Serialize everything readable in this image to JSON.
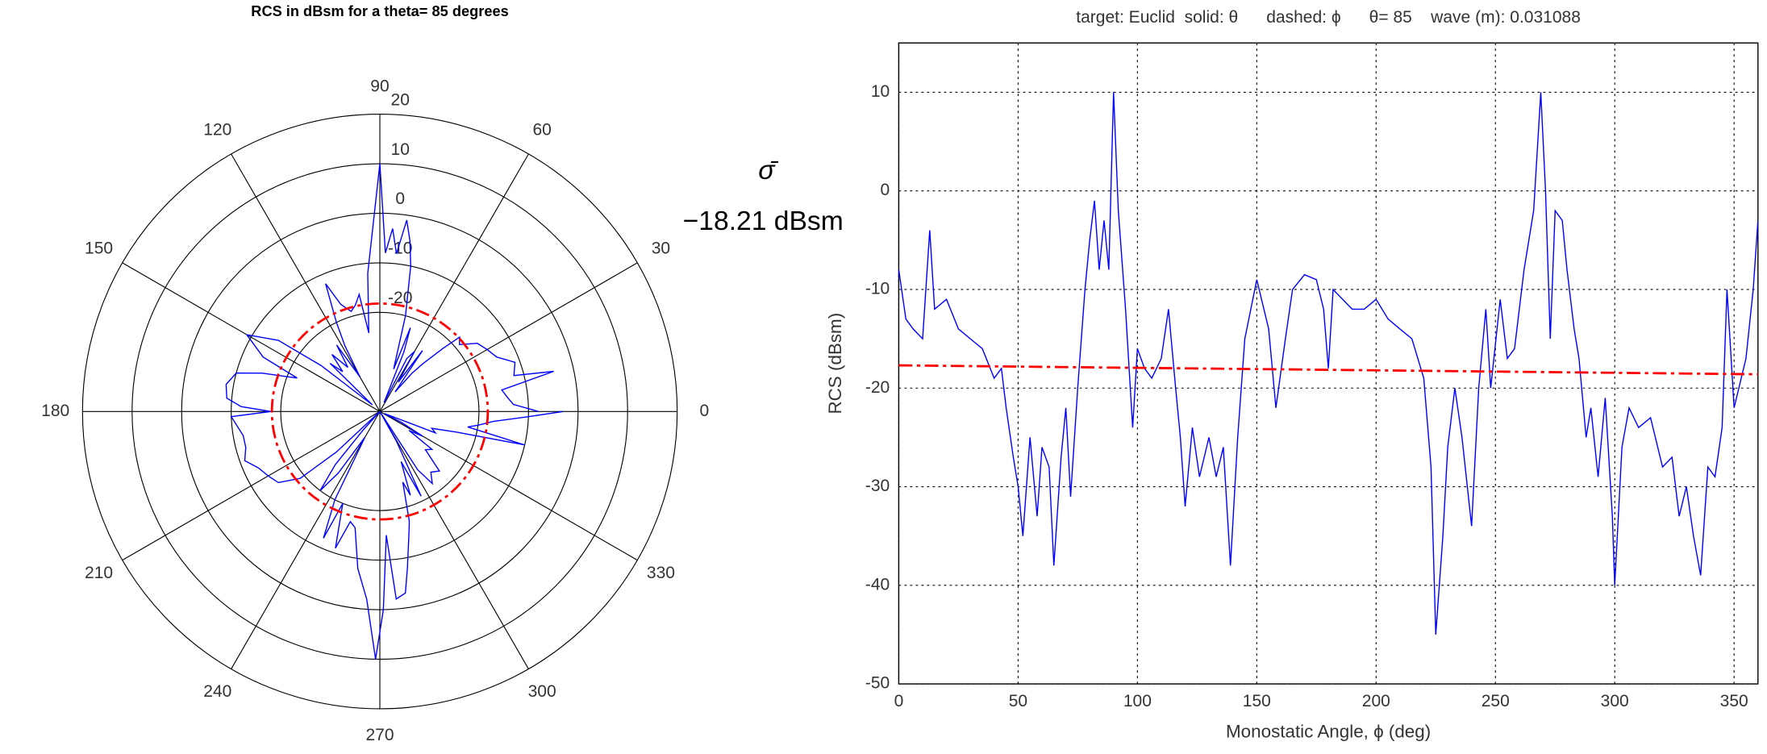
{
  "chart_data": [
    {
      "type": "polar",
      "title": "RCS in dBsm for a theta= 85 degrees",
      "theta": [
        0,
        3,
        6,
        10,
        13,
        15,
        20,
        25,
        30,
        35,
        40,
        43,
        45,
        48,
        50,
        52,
        55,
        58,
        60,
        63,
        65,
        68,
        70,
        72,
        75,
        78,
        80,
        82,
        84,
        86,
        88,
        90,
        92,
        95,
        98,
        100,
        103,
        106,
        110,
        113,
        116,
        118,
        120,
        123,
        126,
        130,
        133,
        136,
        139,
        142,
        145,
        150,
        155,
        158,
        162,
        165,
        170,
        175,
        178,
        180,
        182,
        190,
        195,
        200,
        205,
        210,
        215,
        220,
        223,
        225,
        228,
        230,
        233,
        236,
        240,
        243,
        246,
        248,
        252,
        255,
        258,
        262,
        266,
        269,
        271,
        273,
        275,
        278,
        280,
        283,
        285,
        288,
        290,
        293,
        296,
        299,
        300,
        303,
        306,
        310,
        315,
        320,
        324,
        327,
        330,
        333,
        336,
        339,
        342,
        345,
        347,
        350,
        352,
        355,
        358,
        360
      ],
      "values": [
        -8,
        -13,
        -14,
        -15,
        -4,
        -12,
        -11,
        -14,
        -15,
        -16,
        -19,
        -18,
        -22,
        -27,
        -30,
        -35,
        -25,
        -33,
        -26,
        -28,
        -38,
        -27,
        -22,
        -31,
        -20,
        -10,
        -5,
        -1,
        -8,
        -3,
        -8,
        10,
        -2,
        -12,
        -24,
        -16,
        -18,
        -19,
        -17,
        -12,
        -20,
        -25,
        -32,
        -24,
        -29,
        -25,
        -29,
        -26,
        -38,
        -25,
        -15,
        -9,
        -14,
        -22,
        -15,
        -10,
        -8.5,
        -9,
        -12,
        -18,
        -10,
        -12,
        -12,
        -11,
        -13,
        -14,
        -15,
        -19,
        -28,
        -45,
        -35,
        -26,
        -20,
        -25,
        -34,
        -20,
        -12,
        -20,
        -11,
        -17,
        -16,
        -8,
        -2,
        10,
        0,
        -15,
        -2,
        -3,
        -8,
        -14,
        -17,
        -25,
        -22,
        -29,
        -21,
        -33,
        -40,
        -26,
        -22,
        -24,
        -23,
        -28,
        -27,
        -33,
        -30,
        -35,
        -39,
        -28,
        -29,
        -24,
        -10,
        -22,
        -20,
        -17,
        -10,
        -3
      ],
      "color": "#0000ff",
      "rlim": [
        -40,
        20
      ],
      "rticks": [
        -20,
        -10,
        0,
        10,
        20
      ],
      "thetaticks": [
        0,
        30,
        60,
        90,
        120,
        150,
        180,
        210,
        240,
        270,
        300,
        330
      ],
      "mean_value": -18.21,
      "mean_color": "#ff0000",
      "annotations": [
        "σ̄",
        "−18.21 dBsm"
      ]
    },
    {
      "type": "line",
      "title": "target: Euclid  solid: θ      dashed: ϕ      θ= 85    wave (m): 0.031088",
      "xlabel": "Monostatic Angle, ϕ (deg)",
      "ylabel": "RCS (dBsm)",
      "xlim": [
        0,
        360
      ],
      "xticks": [
        0,
        50,
        100,
        150,
        200,
        250,
        300,
        350
      ],
      "ylim": [
        -50,
        15
      ],
      "yticks": [
        -50,
        -40,
        -30,
        -20,
        -10,
        0,
        10
      ],
      "grid": true,
      "x": [
        0,
        3,
        6,
        10,
        13,
        15,
        20,
        25,
        30,
        35,
        40,
        43,
        45,
        48,
        50,
        52,
        55,
        58,
        60,
        63,
        65,
        68,
        70,
        72,
        75,
        78,
        80,
        82,
        84,
        86,
        88,
        90,
        92,
        95,
        98,
        100,
        103,
        106,
        110,
        113,
        116,
        118,
        120,
        123,
        126,
        130,
        133,
        136,
        139,
        142,
        145,
        150,
        155,
        158,
        162,
        165,
        170,
        175,
        178,
        180,
        182,
        190,
        195,
        200,
        205,
        210,
        215,
        220,
        223,
        225,
        228,
        230,
        233,
        236,
        240,
        243,
        246,
        248,
        252,
        255,
        258,
        262,
        266,
        269,
        271,
        273,
        275,
        278,
        280,
        283,
        285,
        288,
        290,
        293,
        296,
        299,
        300,
        303,
        306,
        310,
        315,
        320,
        324,
        327,
        330,
        333,
        336,
        339,
        342,
        345,
        347,
        350,
        352,
        355,
        358,
        360
      ],
      "series": [
        {
          "color": "#0000ff",
          "values": [
            -8,
            -13,
            -14,
            -15,
            -4,
            -12,
            -11,
            -14,
            -15,
            -16,
            -19,
            -18,
            -22,
            -27,
            -30,
            -35,
            -25,
            -33,
            -26,
            -28,
            -38,
            -27,
            -22,
            -31,
            -20,
            -10,
            -5,
            -1,
            -8,
            -3,
            -8,
            10,
            -2,
            -12,
            -24,
            -16,
            -18,
            -19,
            -17,
            -12,
            -20,
            -25,
            -32,
            -24,
            -29,
            -25,
            -29,
            -26,
            -38,
            -25,
            -15,
            -9,
            -14,
            -22,
            -15,
            -10,
            -8.5,
            -9,
            -12,
            -18,
            -10,
            -12,
            -12,
            -11,
            -13,
            -14,
            -15,
            -19,
            -28,
            -45,
            -35,
            -26,
            -20,
            -25,
            -34,
            -20,
            -12,
            -20,
            -11,
            -17,
            -16,
            -8,
            -2,
            10,
            0,
            -15,
            -2,
            -3,
            -8,
            -14,
            -17,
            -25,
            -22,
            -29,
            -21,
            -33,
            -40,
            -26,
            -22,
            -24,
            -23,
            -28,
            -27,
            -33,
            -30,
            -35,
            -39,
            -28,
            -29,
            -24,
            -10,
            -22,
            -20,
            -17,
            -10,
            -3
          ]
        },
        {
          "color": "#ff0000",
          "dashed": true,
          "x": [
            0,
            360
          ],
          "values": [
            -17.7,
            -18.6
          ]
        }
      ]
    }
  ]
}
